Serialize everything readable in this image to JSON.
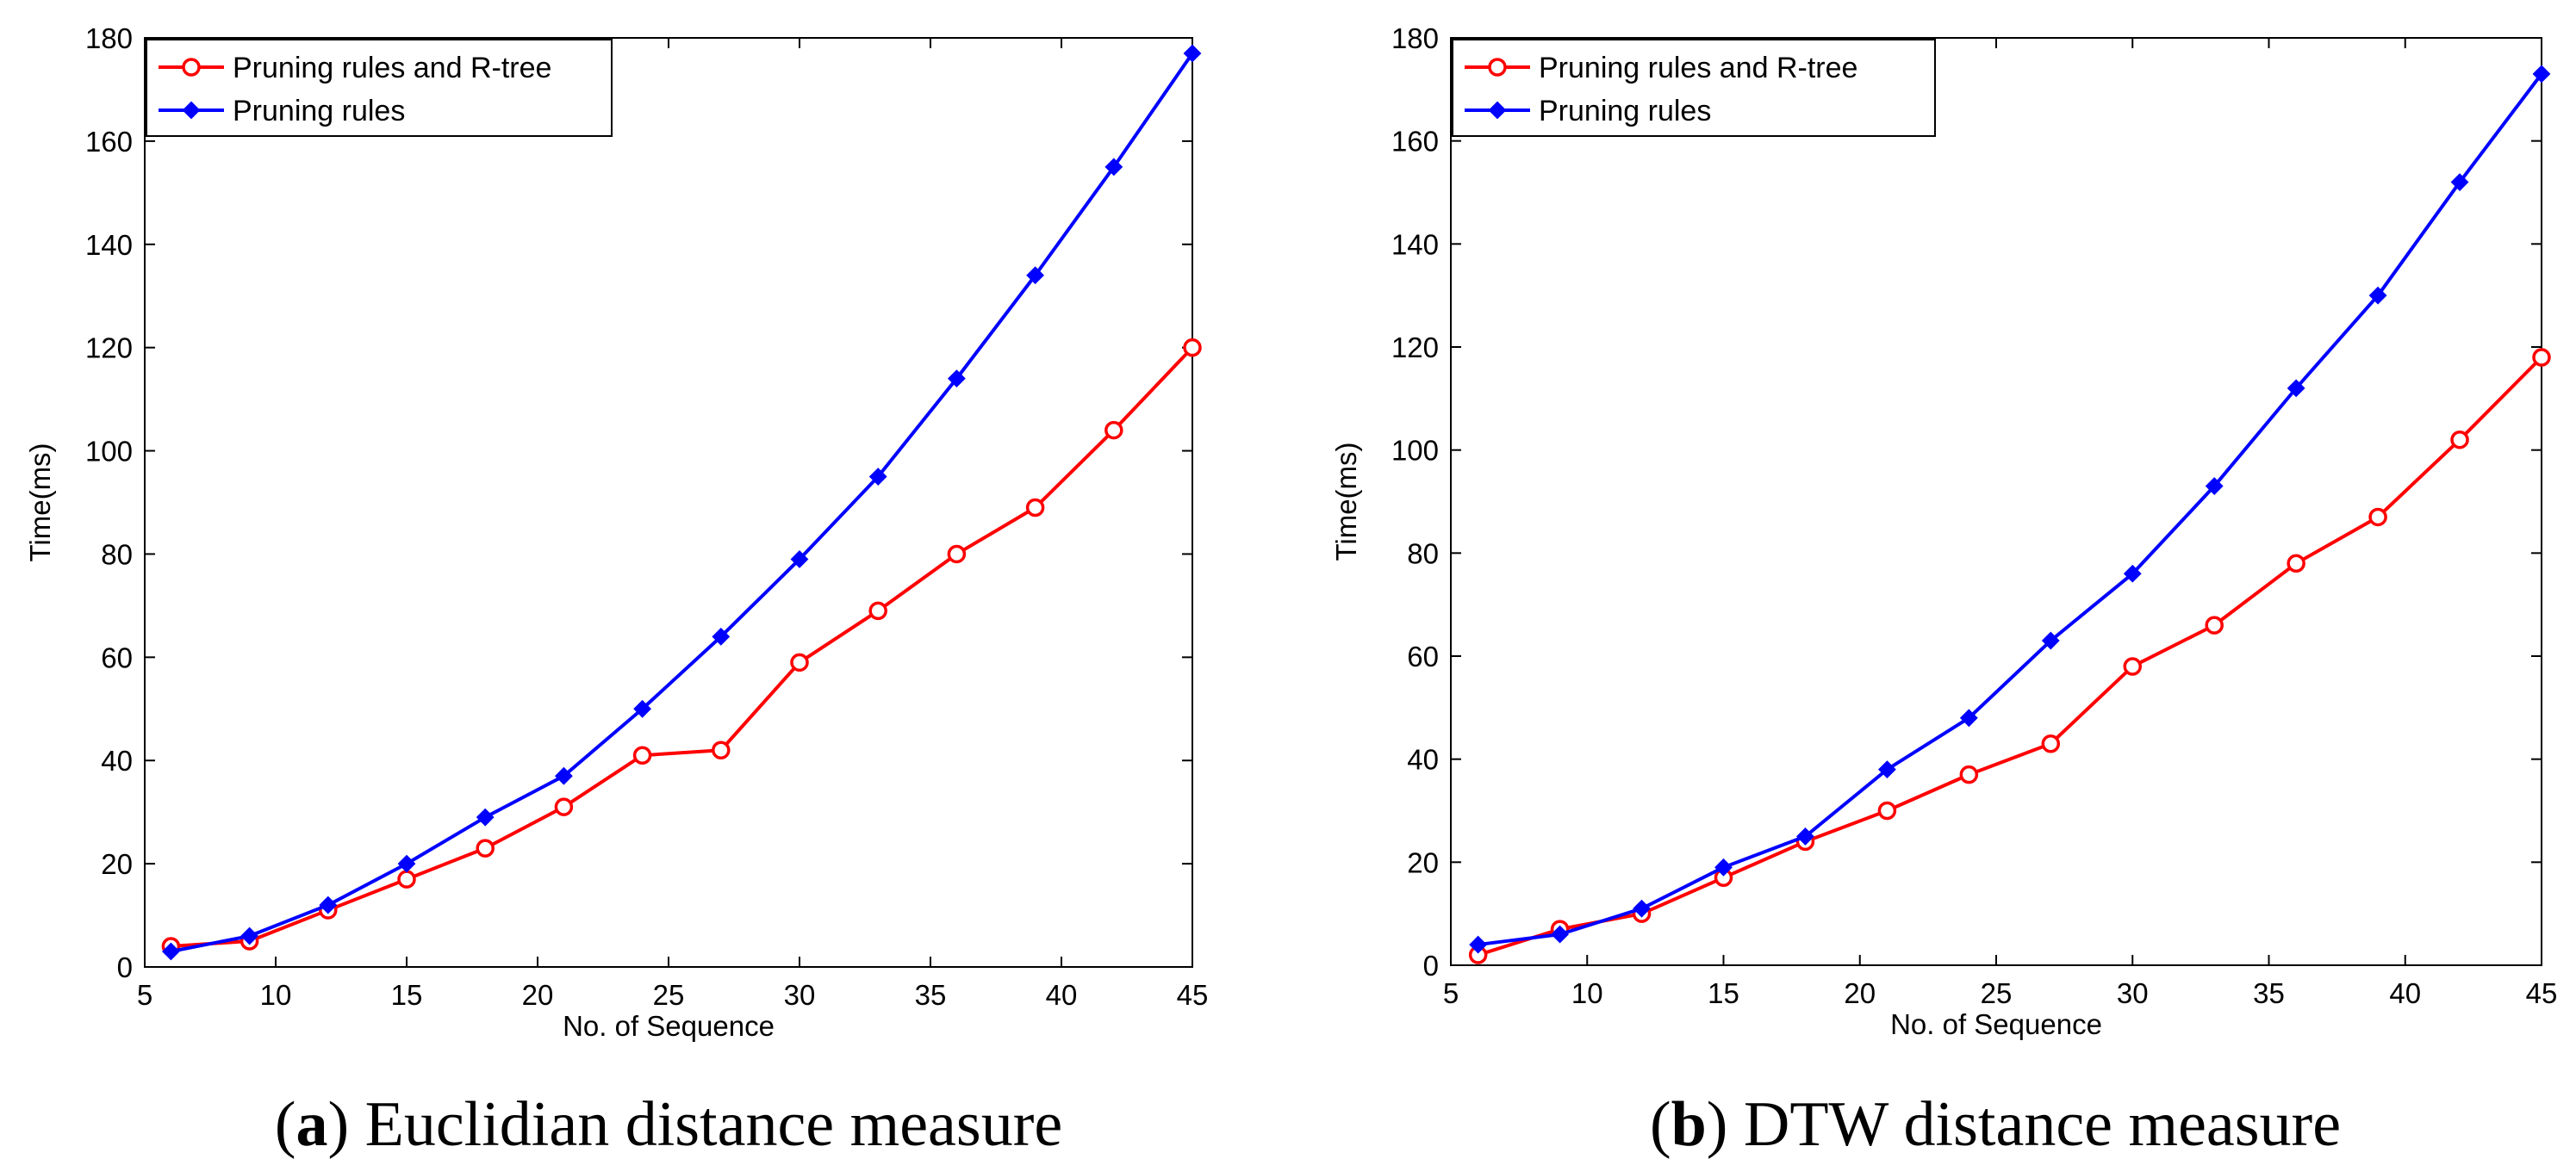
{
  "colors": {
    "series_red": "#ff0000",
    "series_blue": "#0000ff",
    "axis": "#000000"
  },
  "chart_data": [
    {
      "type": "line",
      "title": "",
      "caption": {
        "label": "a",
        "text": "Euclidian distance measure",
        "open": "(",
        "close": ")"
      },
      "xlabel": "No. of Sequence",
      "ylabel": "Time(ms)",
      "xlim": [
        5,
        45
      ],
      "ylim": [
        0,
        180
      ],
      "xticks": [
        5,
        10,
        15,
        20,
        25,
        30,
        35,
        40,
        45
      ],
      "yticks": [
        0,
        20,
        40,
        60,
        80,
        100,
        120,
        140,
        160,
        180
      ],
      "legend_position": "top-left",
      "x": [
        6,
        9,
        12,
        15,
        18,
        21,
        24,
        27,
        30,
        33,
        36,
        39,
        42,
        45
      ],
      "series": [
        {
          "name": "Pruning rules and R-tree",
          "color": "#ff0000",
          "marker": "circle",
          "values": [
            4,
            5,
            11,
            17,
            23,
            31,
            41,
            42,
            59,
            69,
            80,
            89,
            104,
            120
          ]
        },
        {
          "name": "Pruning rules",
          "color": "#0000ff",
          "marker": "diamond",
          "values": [
            3,
            6,
            12,
            20,
            29,
            37,
            50,
            64,
            79,
            95,
            114,
            134,
            155,
            177
          ]
        }
      ]
    },
    {
      "type": "line",
      "title": "",
      "caption": {
        "label": "b",
        "text": "DTW distance measure",
        "open": "(",
        "close": ")"
      },
      "xlabel": "No. of Sequence",
      "ylabel": "Time(ms)",
      "xlim": [
        5,
        45
      ],
      "ylim": [
        0,
        180
      ],
      "xticks": [
        5,
        10,
        15,
        20,
        25,
        30,
        35,
        40,
        45
      ],
      "yticks": [
        0,
        20,
        40,
        60,
        80,
        100,
        120,
        140,
        160,
        180
      ],
      "legend_position": "top-left",
      "x": [
        6,
        9,
        12,
        15,
        18,
        21,
        24,
        27,
        30,
        33,
        36,
        39,
        42,
        45
      ],
      "series": [
        {
          "name": "Pruning rules and R-tree",
          "color": "#ff0000",
          "marker": "circle",
          "values": [
            2,
            7,
            10,
            17,
            24,
            30,
            37,
            43,
            58,
            66,
            78,
            87,
            102,
            118
          ]
        },
        {
          "name": "Pruning rules",
          "color": "#0000ff",
          "marker": "diamond",
          "values": [
            4,
            6,
            11,
            19,
            25,
            38,
            48,
            63,
            76,
            93,
            112,
            130,
            152,
            173
          ]
        }
      ]
    }
  ]
}
